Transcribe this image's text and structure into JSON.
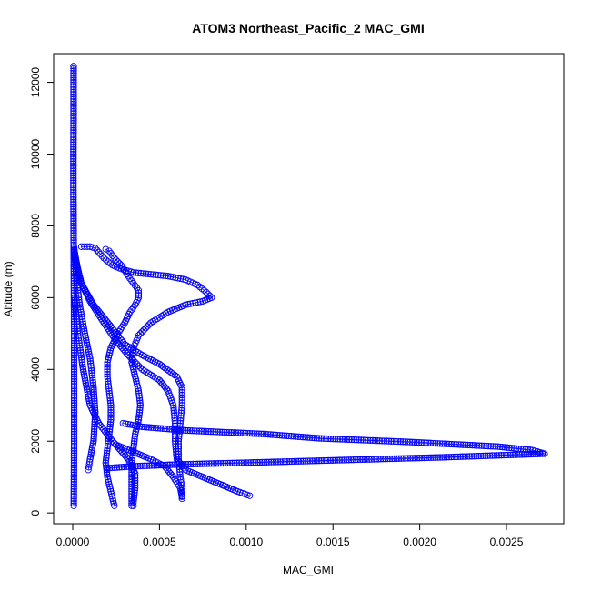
{
  "chart_data": {
    "type": "scatter",
    "title": "ATOM3 Northeast_Pacific_2 MAC_GMI",
    "xlabel": "MAC_GMI",
    "ylabel": "Altitude (m)",
    "xlim": [
      -0.00011,
      0.00283
    ],
    "ylim": [
      -300,
      12800
    ],
    "x_ticks": [
      0,
      0.0005,
      0.001,
      0.0015,
      0.002,
      0.0025
    ],
    "x_tick_labels": [
      "0.0000",
      "0.0005",
      "0.0010",
      "0.0015",
      "0.0020",
      "0.0025"
    ],
    "y_ticks": [
      0,
      2000,
      4000,
      6000,
      8000,
      10000,
      12000
    ],
    "y_tick_labels": [
      "0",
      "2000",
      "4000",
      "6000",
      "8000",
      "10000",
      "12000"
    ],
    "grid": false,
    "legend": "none",
    "marker": "open-circle",
    "color": "#0000ff",
    "series": [
      {
        "values": [
          [
            5e-06,
            12450
          ],
          [
            5e-06,
            12000
          ],
          [
            5e-06,
            11000
          ],
          [
            4e-06,
            10000
          ],
          [
            4e-06,
            9000
          ],
          [
            5e-06,
            8000
          ],
          [
            6e-06,
            7000
          ],
          [
            7e-06,
            6000
          ],
          [
            8e-06,
            5000
          ],
          [
            8e-06,
            4000
          ],
          [
            8e-06,
            3000
          ],
          [
            8e-06,
            2000
          ],
          [
            7e-06,
            1000
          ],
          [
            6e-06,
            200
          ]
        ]
      },
      {
        "values": [
          [
            8e-06,
            7400
          ],
          [
            2e-05,
            6600
          ],
          [
            4e-05,
            5800
          ],
          [
            7e-05,
            5000
          ],
          [
            0.0001,
            4300
          ],
          [
            0.00012,
            3500
          ],
          [
            0.00013,
            2800
          ],
          [
            0.00012,
            2000
          ],
          [
            0.0001,
            1500
          ],
          [
            9e-05,
            1200
          ]
        ]
      },
      {
        "values": [
          [
            1e-05,
            7300
          ],
          [
            4e-05,
            6500
          ],
          [
            0.0001,
            5900
          ],
          [
            0.00018,
            5300
          ],
          [
            0.00025,
            4800
          ],
          [
            0.00032,
            4400
          ],
          [
            0.0004,
            4000
          ],
          [
            0.0005,
            3700
          ],
          [
            0.00055,
            3400
          ],
          [
            0.00058,
            3000
          ],
          [
            0.00059,
            2500
          ],
          [
            0.00059,
            2000
          ],
          [
            0.0006,
            1500
          ],
          [
            0.00065,
            1200
          ],
          [
            0.00075,
            1000
          ],
          [
            0.00085,
            800
          ],
          [
            0.00095,
            600
          ],
          [
            0.00102,
            480
          ]
        ]
      },
      {
        "values": [
          [
            1e-05,
            7200
          ],
          [
            5e-05,
            6400
          ],
          [
            0.00012,
            5800
          ],
          [
            0.00022,
            5200
          ],
          [
            0.0003,
            4700
          ],
          [
            0.0004,
            4400
          ],
          [
            0.0005,
            4150
          ],
          [
            0.0006,
            3800
          ],
          [
            0.00063,
            3500
          ],
          [
            0.00063,
            3000
          ],
          [
            0.00062,
            2500
          ],
          [
            0.00061,
            2000
          ],
          [
            0.00061,
            1500
          ],
          [
            0.00062,
            1000
          ],
          [
            0.00063,
            700
          ],
          [
            0.00063,
            400
          ]
        ]
      },
      {
        "values": [
          [
            5e-05,
            7420
          ],
          [
            0.0001,
            7420
          ],
          [
            0.00013,
            7380
          ],
          [
            0.00018,
            7100
          ],
          [
            0.00023,
            6900
          ],
          [
            0.00028,
            6800
          ],
          [
            0.00035,
            6700
          ],
          [
            0.00045,
            6650
          ],
          [
            0.00055,
            6600
          ],
          [
            0.00065,
            6500
          ],
          [
            0.00072,
            6350
          ],
          [
            0.00077,
            6150
          ],
          [
            0.0008,
            6000
          ],
          [
            0.00075,
            5900
          ],
          [
            0.00065,
            5800
          ],
          [
            0.00055,
            5600
          ],
          [
            0.00045,
            5300
          ],
          [
            0.00038,
            4950
          ],
          [
            0.00035,
            4600
          ],
          [
            0.00034,
            4200
          ],
          [
            0.00036,
            3800
          ],
          [
            0.00038,
            3400
          ],
          [
            0.00039,
            3000
          ],
          [
            0.00038,
            2600
          ],
          [
            0.00036,
            2200
          ],
          [
            0.00035,
            1800
          ],
          [
            0.00034,
            1400
          ],
          [
            0.00034,
            1000
          ],
          [
            0.00034,
            600
          ],
          [
            0.00034,
            200
          ]
        ]
      },
      {
        "values": [
          [
            0.00019,
            7350
          ],
          [
            0.00021,
            7300
          ],
          [
            0.00024,
            7100
          ],
          [
            0.00028,
            6900
          ],
          [
            0.00032,
            6600
          ],
          [
            0.00035,
            6400
          ],
          [
            0.00038,
            6200
          ],
          [
            0.00038,
            6000
          ],
          [
            0.00036,
            5800
          ],
          [
            0.00033,
            5600
          ],
          [
            0.0003,
            5300
          ],
          [
            0.00026,
            5000
          ],
          [
            0.00022,
            4600
          ],
          [
            0.0002,
            4200
          ],
          [
            0.0002,
            3800
          ],
          [
            0.00021,
            3400
          ],
          [
            0.00022,
            3000
          ],
          [
            0.00022,
            2600
          ],
          [
            0.00021,
            2200
          ],
          [
            0.0002,
            1800
          ],
          [
            0.00019,
            1400
          ],
          [
            0.0002,
            1000
          ],
          [
            0.00022,
            600
          ],
          [
            0.00024,
            200
          ]
        ]
      },
      {
        "values": [
          [
            1e-05,
            6000
          ],
          [
            3e-05,
            5000
          ],
          [
            6e-05,
            4000
          ],
          [
            0.0001,
            3000
          ],
          [
            0.00015,
            2500
          ],
          [
            0.00023,
            2000
          ],
          [
            0.00032,
            1500
          ],
          [
            0.00036,
            1100
          ],
          [
            0.00036,
            700
          ],
          [
            0.00035,
            300
          ],
          [
            0.00035,
            200
          ]
        ]
      },
      {
        "values": [
          [
            0.00029,
            2500
          ],
          [
            0.0004,
            2400
          ],
          [
            0.00065,
            2300
          ],
          [
            0.0011,
            2200
          ],
          [
            0.00142,
            2080
          ],
          [
            0.00193,
            1980
          ],
          [
            0.00245,
            1850
          ],
          [
            0.00265,
            1750
          ],
          [
            0.00272,
            1650
          ],
          [
            0.00213,
            1550
          ],
          [
            0.001,
            1400
          ],
          [
            0.0006,
            1350
          ],
          [
            0.00035,
            1300
          ],
          [
            0.0002,
            1250
          ]
        ]
      },
      {
        "values": [
          [
            0.00025,
            1900
          ],
          [
            0.00035,
            1700
          ],
          [
            0.00045,
            1500
          ],
          [
            0.00053,
            1300
          ],
          [
            0.00058,
            1000
          ],
          [
            0.00062,
            700
          ],
          [
            0.00063,
            450
          ]
        ]
      }
    ]
  }
}
